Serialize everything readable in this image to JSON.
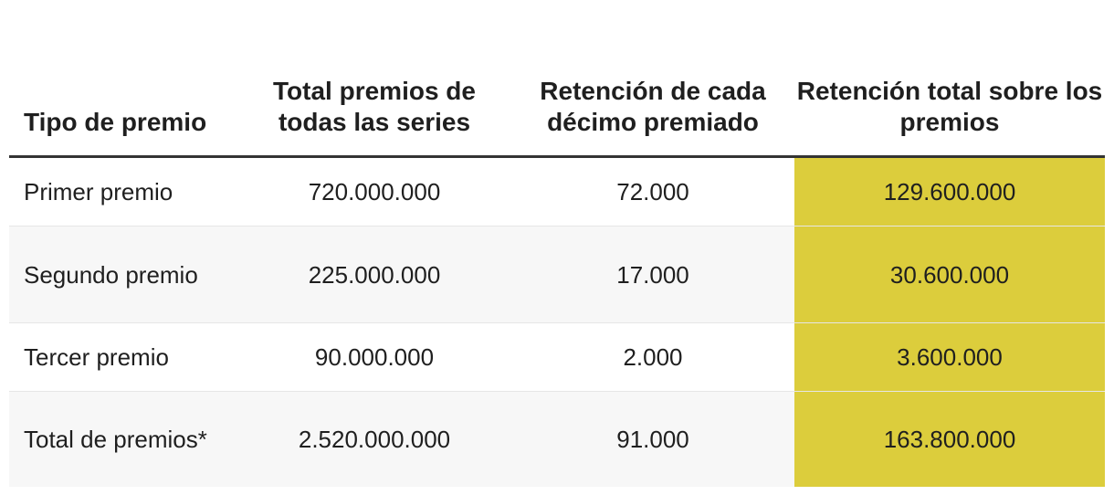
{
  "chart_data": {
    "type": "table",
    "columns": [
      "Tipo de premio",
      "Total premios de todas las series",
      "Retención de cada décimo premiado",
      "Retención total sobre los premios"
    ],
    "rows": [
      [
        "Primer premio",
        "720.000.000",
        "72.000",
        "129.600.000"
      ],
      [
        "Segundo premio",
        "225.000.000",
        "17.000",
        "30.600.000"
      ],
      [
        "Tercer premio",
        "90.000.000",
        "2.000",
        "3.600.000"
      ],
      [
        "Total de premios*",
        "2.520.000.000",
        "91.000",
        "163.800.000"
      ]
    ],
    "highlight_column": 3,
    "highlight_color": "#dccd3c"
  }
}
